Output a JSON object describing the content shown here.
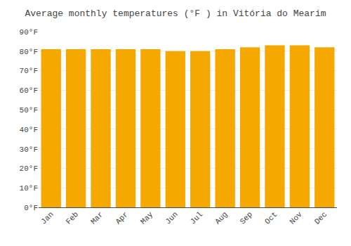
{
  "chart_data": {
    "type": "bar",
    "title": "Average monthly temperatures (°F ) in Vitória do Mearim",
    "categories": [
      "Jan",
      "Feb",
      "Mar",
      "Apr",
      "May",
      "Jun",
      "Jul",
      "Aug",
      "Sep",
      "Oct",
      "Nov",
      "Dec"
    ],
    "values": [
      81,
      81,
      81,
      81,
      81,
      80,
      80,
      81,
      82,
      83,
      83,
      82
    ],
    "color": "#F5A800",
    "ylim": [
      0,
      90
    ],
    "yticks": [
      {
        "value": 0,
        "label": "0°F"
      },
      {
        "value": 10,
        "label": "10°F"
      },
      {
        "value": 20,
        "label": "20°F"
      },
      {
        "value": 30,
        "label": "30°F"
      },
      {
        "value": 40,
        "label": "40°F"
      },
      {
        "value": 50,
        "label": "50°F"
      },
      {
        "value": 60,
        "label": "60°F"
      },
      {
        "value": 70,
        "label": "70°F"
      },
      {
        "value": 80,
        "label": "80°F"
      },
      {
        "value": 90,
        "label": "90°F"
      }
    ],
    "grid": true
  }
}
